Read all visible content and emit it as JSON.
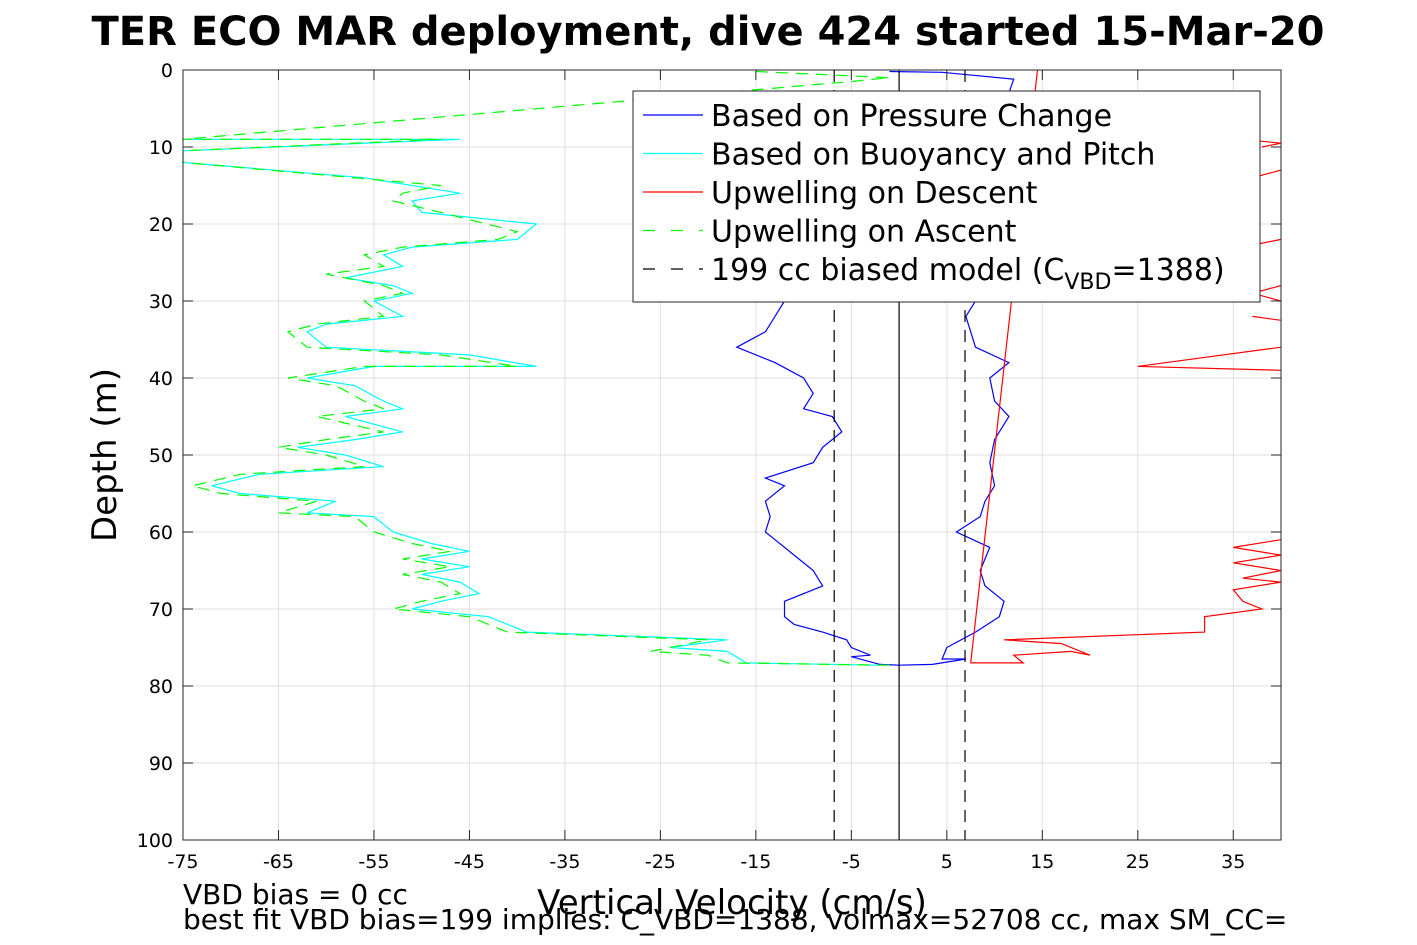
{
  "chart_data": {
    "type": "line",
    "title": "TER ECO MAR deployment, dive 424 started 15-Mar-20",
    "xlabel": "Vertical Velocity (cm/s)",
    "ylabel": "Depth (m)",
    "xlim": [
      -75,
      40
    ],
    "ylim": [
      0,
      100
    ],
    "y_reversed": true,
    "grid": true,
    "legend_position": "top-right",
    "x_ticks": [
      "-75",
      "-65",
      "-55",
      "-45",
      "-35",
      "-25",
      "-15",
      "-5",
      "5",
      "15",
      "25",
      "35"
    ],
    "y_ticks": [
      "0",
      "10",
      "20",
      "30",
      "40",
      "50",
      "60",
      "70",
      "80",
      "90",
      "100"
    ],
    "legend": [
      {
        "label": "Based on Pressure Change",
        "color": "#0000ff",
        "dash": "solid"
      },
      {
        "label": "Based on Buoyancy and Pitch",
        "color": "#00ffff",
        "dash": "solid"
      },
      {
        "label": "Upwelling on Descent",
        "color": "#ff0000",
        "dash": "solid"
      },
      {
        "label": "Upwelling on Ascent",
        "color": "#00ff00",
        "dash": "dashed"
      },
      {
        "label": "199 cc biased model (C",
        "sub": "VBD",
        "tail": "=1388)",
        "color": "#000000",
        "dash": "dashed"
      }
    ],
    "series": [
      {
        "name": "Based on Pressure Change",
        "color": "#0000ff",
        "dash": "solid",
        "points": [
          [
            -1,
            0.2
          ],
          [
            4.5,
            0.3
          ],
          [
            12,
            1.2
          ],
          [
            11.5,
            3
          ],
          [
            10,
            5
          ],
          [
            9,
            8
          ],
          [
            7,
            12
          ],
          [
            8,
            16
          ],
          [
            10,
            20
          ],
          [
            8,
            24
          ],
          [
            9,
            28
          ],
          [
            7,
            32
          ],
          [
            8,
            36
          ],
          [
            11.5,
            38
          ],
          [
            9.5,
            40
          ],
          [
            10,
            43
          ],
          [
            11.5,
            45
          ],
          [
            10,
            48
          ],
          [
            9.5,
            51
          ],
          [
            10,
            54
          ],
          [
            9,
            56
          ],
          [
            8.5,
            58
          ],
          [
            6,
            60
          ],
          [
            9.5,
            62
          ],
          [
            8.5,
            65
          ],
          [
            9,
            67
          ],
          [
            11,
            69
          ],
          [
            10.5,
            71
          ],
          [
            8,
            73
          ],
          [
            5,
            75
          ],
          [
            4.5,
            76.5
          ],
          [
            7,
            76.5
          ],
          [
            3.5,
            77.2
          ],
          [
            0,
            77.3
          ],
          [
            -2,
            77.2
          ],
          [
            -5,
            76.2
          ],
          [
            -3,
            76
          ],
          [
            -5,
            75
          ],
          [
            -5.5,
            74
          ],
          [
            -8,
            73
          ],
          [
            -11,
            72
          ],
          [
            -12,
            71
          ],
          [
            -12,
            69
          ],
          [
            -8,
            67
          ],
          [
            -9,
            65
          ],
          [
            -11,
            63
          ],
          [
            -13,
            61
          ],
          [
            -14,
            60
          ],
          [
            -13.5,
            58
          ],
          [
            -14,
            56
          ],
          [
            -12,
            54
          ],
          [
            -14,
            53
          ],
          [
            -9,
            51
          ],
          [
            -8,
            49
          ],
          [
            -6,
            47
          ],
          [
            -7,
            45
          ],
          [
            -10,
            44
          ],
          [
            -9,
            42
          ],
          [
            -10,
            40
          ],
          [
            -13,
            38
          ],
          [
            -17,
            36
          ],
          [
            -14,
            34
          ],
          [
            -13,
            32
          ],
          [
            -12,
            30
          ]
        ]
      },
      {
        "name": "Based on Buoyancy and Pitch",
        "color": "#00ffff",
        "dash": "solid",
        "points": [
          [
            -75,
            9
          ],
          [
            -46,
            9
          ],
          [
            -75,
            10.5
          ],
          [
            -75,
            12
          ],
          [
            -56,
            14
          ],
          [
            -46,
            16
          ],
          [
            -51,
            17
          ],
          [
            -50,
            18.5
          ],
          [
            -38,
            20
          ],
          [
            -40,
            22
          ],
          [
            -51,
            23
          ],
          [
            -54,
            24
          ],
          [
            -52,
            25.5
          ],
          [
            -58,
            27
          ],
          [
            -53,
            28
          ],
          [
            -51,
            29
          ],
          [
            -55,
            30
          ],
          [
            -52,
            32
          ],
          [
            -60,
            33
          ],
          [
            -62,
            34
          ],
          [
            -60,
            36
          ],
          [
            -45,
            37
          ],
          [
            -38,
            38.5
          ],
          [
            -55,
            38.5
          ],
          [
            -62,
            40
          ],
          [
            -57,
            41
          ],
          [
            -54,
            43
          ],
          [
            -52,
            44
          ],
          [
            -58,
            45
          ],
          [
            -52,
            47
          ],
          [
            -57,
            48
          ],
          [
            -63,
            49
          ],
          [
            -58,
            50
          ],
          [
            -54,
            51.5
          ],
          [
            -67,
            52.5
          ],
          [
            -72,
            54
          ],
          [
            -69,
            55
          ],
          [
            -59,
            56
          ],
          [
            -62,
            57.5
          ],
          [
            -55,
            58
          ],
          [
            -53,
            60
          ],
          [
            -49,
            61.5
          ],
          [
            -45,
            62.5
          ],
          [
            -50,
            63.5
          ],
          [
            -45,
            64.5
          ],
          [
            -50,
            65.5
          ],
          [
            -46,
            66.5
          ],
          [
            -44,
            68
          ],
          [
            -48,
            69
          ],
          [
            -51,
            70
          ],
          [
            -43,
            71
          ],
          [
            -39,
            73
          ],
          [
            -18,
            74
          ],
          [
            -24,
            75
          ],
          [
            -18,
            75.5
          ],
          [
            -16,
            77
          ],
          [
            -2,
            77.3
          ]
        ]
      },
      {
        "name": "Upwelling on Descent",
        "color": "#ff0000",
        "dash": "solid",
        "points": [
          [
            14.5,
            0
          ],
          [
            7.5,
            77
          ]
        ]
      },
      {
        "name": "Upwelling on Descent",
        "color": "#ff0000",
        "dash": "solid",
        "points": [
          [
            7.5,
            77
          ],
          [
            13,
            77
          ],
          [
            12,
            76
          ],
          [
            18,
            75.5
          ],
          [
            20,
            76
          ],
          [
            17,
            74.5
          ],
          [
            11,
            74
          ],
          [
            32,
            73
          ],
          [
            32,
            71
          ],
          [
            38,
            70
          ],
          [
            36,
            69
          ],
          [
            35,
            67.5
          ],
          [
            40,
            66.5
          ],
          [
            36,
            66
          ],
          [
            40,
            65
          ],
          [
            35,
            64
          ],
          [
            40,
            63
          ],
          [
            35,
            62
          ],
          [
            40,
            61
          ]
        ]
      },
      {
        "name": "Upwelling on Descent",
        "color": "#ff0000",
        "dash": "solid",
        "points": [
          [
            40,
            36
          ],
          [
            25,
            38.5
          ],
          [
            40,
            39
          ]
        ]
      },
      {
        "name": "Upwelling on Descent",
        "color": "#ff0000",
        "dash": "solid",
        "points": [
          [
            40,
            28
          ],
          [
            37,
            29
          ],
          [
            40,
            30
          ]
        ]
      },
      {
        "name": "Upwelling on Descent",
        "color": "#ff0000",
        "dash": "solid",
        "points": [
          [
            37,
            32
          ],
          [
            40,
            32.5
          ]
        ]
      },
      {
        "name": "Upwelling on Descent",
        "color": "#ff0000",
        "dash": "solid",
        "points": [
          [
            40,
            22
          ],
          [
            36,
            23
          ]
        ]
      },
      {
        "name": "Upwelling on Descent",
        "color": "#ff0000",
        "dash": "solid",
        "points": [
          [
            40,
            13
          ],
          [
            37,
            14
          ]
        ]
      },
      {
        "name": "Upwelling on Descent",
        "color": "#ff0000",
        "dash": "solid",
        "points": [
          [
            36,
            9
          ],
          [
            40,
            9.5
          ],
          [
            38,
            10
          ]
        ]
      },
      {
        "name": "Upwelling on Ascent",
        "color": "#00ff00",
        "dash": "dashed",
        "points": [
          [
            -15,
            0.2
          ],
          [
            -1,
            1
          ],
          [
            -5,
            1.5
          ],
          [
            -75,
            9
          ],
          [
            -48,
            9
          ],
          [
            -75,
            10.5
          ],
          [
            -75,
            12
          ],
          [
            -57,
            14
          ],
          [
            -48,
            15
          ],
          [
            -52,
            16
          ],
          [
            -53,
            17
          ],
          [
            -48,
            18.5
          ],
          [
            -40,
            21
          ],
          [
            -42,
            22
          ],
          [
            -52,
            23
          ],
          [
            -56,
            24
          ],
          [
            -54,
            25.5
          ],
          [
            -60,
            26.5
          ],
          [
            -54,
            28
          ],
          [
            -52,
            29
          ],
          [
            -56,
            30
          ],
          [
            -54,
            32
          ],
          [
            -61,
            33
          ],
          [
            -64,
            34
          ],
          [
            -62,
            36
          ],
          [
            -48,
            37
          ],
          [
            -40,
            38.5
          ],
          [
            -56,
            38.5
          ],
          [
            -64,
            40
          ],
          [
            -59,
            41
          ],
          [
            -56,
            43
          ],
          [
            -54,
            44
          ],
          [
            -61,
            45
          ],
          [
            -54,
            47
          ],
          [
            -60,
            48
          ],
          [
            -65,
            49
          ],
          [
            -60,
            50
          ],
          [
            -56,
            51.5
          ],
          [
            -69,
            52.5
          ],
          [
            -74,
            54
          ],
          [
            -71,
            55
          ],
          [
            -61,
            56
          ],
          [
            -65,
            57.5
          ],
          [
            -57,
            58
          ],
          [
            -55,
            60
          ],
          [
            -51,
            61.5
          ],
          [
            -47,
            62.5
          ],
          [
            -52,
            63.5
          ],
          [
            -47,
            64.5
          ],
          [
            -52,
            65.5
          ],
          [
            -48,
            66.5
          ],
          [
            -46,
            68
          ],
          [
            -50,
            69
          ],
          [
            -53,
            70
          ],
          [
            -45,
            71
          ],
          [
            -41,
            73
          ],
          [
            -20,
            74
          ],
          [
            -26,
            75.5
          ],
          [
            -20,
            76
          ],
          [
            -18,
            77
          ],
          [
            -1,
            77.3
          ]
        ]
      },
      {
        "name": "199 cc biased model",
        "color": "#000000",
        "dash": "dashed",
        "points": [
          [
            -6.8,
            0
          ],
          [
            -6.8,
            100
          ]
        ]
      },
      {
        "name": "199 cc biased model",
        "color": "#000000",
        "dash": "dashed",
        "points": [
          [
            6.9,
            0
          ],
          [
            6.9,
            100
          ]
        ]
      },
      {
        "name": "",
        "color": "#000000",
        "dash": "solid",
        "points": [
          [
            0,
            0
          ],
          [
            0,
            100
          ]
        ]
      }
    ]
  },
  "footer": {
    "line1": "VBD bias = 0 cc",
    "line2": "best fit VBD bias=199 implies: C_VBD=1388, volmax=52708 cc, max SM_CC="
  }
}
